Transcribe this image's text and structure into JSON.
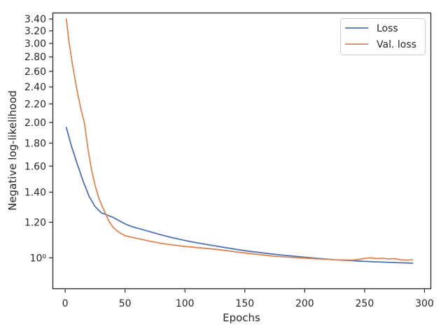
{
  "chart_data": {
    "type": "line",
    "xlabel": "Epochs",
    "ylabel": "Negative log-likelihood",
    "xlim": [
      -10,
      305
    ],
    "ylim": [
      0.855,
      3.5
    ],
    "yscale": "log",
    "x_ticks": [
      0,
      50,
      100,
      150,
      200,
      250,
      300
    ],
    "x_tick_labels": [
      "0",
      "50",
      "100",
      "150",
      "200",
      "250",
      "300"
    ],
    "y_ticks": [
      1.0,
      1.2,
      1.4,
      1.6,
      1.8,
      2.0,
      2.2,
      2.4,
      2.6,
      2.8,
      3.0,
      3.2,
      3.4
    ],
    "y_tick_labels": [
      "10⁰",
      "1.20",
      "1.40",
      "1.60",
      "1.80",
      "2.00",
      "2.20",
      "2.40",
      "2.60",
      "2.80",
      "3.00",
      "3.20",
      "3.40"
    ],
    "grid": false,
    "legend_position": "top-right",
    "series": [
      {
        "name": "Loss",
        "color": "#4c72b0",
        "x": [
          1,
          5,
          10,
          15,
          20,
          25,
          30,
          35,
          40,
          45,
          50,
          55,
          60,
          70,
          80,
          90,
          100,
          110,
          125,
          150,
          175,
          200,
          225,
          250,
          275,
          290
        ],
        "y": [
          1.95,
          1.78,
          1.62,
          1.48,
          1.37,
          1.3,
          1.26,
          1.245,
          1.23,
          1.21,
          1.19,
          1.175,
          1.165,
          1.145,
          1.125,
          1.108,
          1.093,
          1.08,
          1.063,
          1.037,
          1.018,
          1.003,
          0.99,
          0.982,
          0.976,
          0.973
        ]
      },
      {
        "name": "Val. loss",
        "color": "#dd8452",
        "x": [
          1,
          3,
          6,
          10,
          13,
          16,
          19,
          22,
          25,
          28,
          31,
          34,
          37,
          40,
          43,
          46,
          50,
          55,
          60,
          70,
          80,
          90,
          100,
          125,
          150,
          175,
          200,
          225,
          240,
          250,
          255,
          260,
          265,
          270,
          275,
          280,
          285,
          290
        ],
        "y": [
          3.4,
          3.05,
          2.7,
          2.35,
          2.15,
          2.0,
          1.75,
          1.57,
          1.45,
          1.36,
          1.3,
          1.25,
          1.2,
          1.17,
          1.15,
          1.135,
          1.12,
          1.112,
          1.105,
          1.09,
          1.077,
          1.068,
          1.06,
          1.045,
          1.025,
          1.008,
          0.998,
          0.99,
          0.988,
          0.997,
          1.0,
          0.996,
          0.998,
          0.994,
          0.996,
          0.99,
          0.988,
          0.99
        ]
      }
    ]
  }
}
